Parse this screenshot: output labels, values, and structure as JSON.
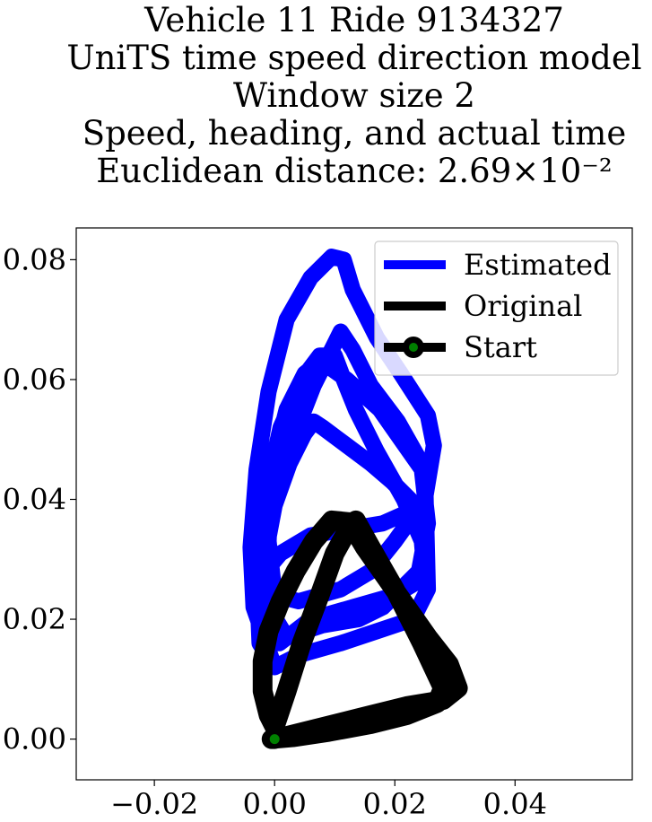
{
  "chart_data": {
    "type": "line",
    "title_lines": [
      "Vehicle 11 Ride 9134327",
      "UniTS time speed direction model",
      "Window size 2",
      "Speed, heading, and actual time",
      "Euclidean distance: 2.69×10⁻²"
    ],
    "xlim": [
      -0.033,
      0.0595
    ],
    "ylim": [
      -0.0068,
      0.0853
    ],
    "x_ticks": [
      -0.02,
      0.0,
      0.02,
      0.04
    ],
    "x_tick_labels": [
      "−0.02",
      "0.00",
      "0.02",
      "0.04"
    ],
    "y_ticks": [
      0.0,
      0.02,
      0.04,
      0.06,
      0.08
    ],
    "y_tick_labels": [
      "0.00",
      "0.02",
      "0.04",
      "0.06",
      "0.08"
    ],
    "grid": false,
    "legend_position": "top-right",
    "series": [
      {
        "name": "Estimated",
        "color": "#0000ff",
        "x": [
          0.0,
          -0.0035,
          -0.004,
          -0.003,
          -0.001,
          0.002,
          0.006,
          0.0095,
          0.0115,
          0.013,
          0.017,
          0.021,
          0.0255,
          0.0265,
          0.025,
          0.02,
          0.016,
          0.011,
          0.004,
          0.0,
          -0.001,
          -0.0005,
          0.002,
          0.005,
          0.0075,
          0.0085,
          0.012,
          0.0175,
          0.021,
          0.0245,
          0.0255,
          0.024,
          0.018,
          0.014,
          0.008,
          0.002,
          -0.001,
          -0.0015,
          0.0,
          0.0025,
          0.005,
          0.0065,
          0.008,
          0.012,
          0.016,
          0.0195,
          0.0225,
          0.0225,
          0.018,
          0.012,
          0.006,
          0.001,
          -0.0015,
          -0.003,
          -0.002,
          0.0,
          0.003,
          0.0065,
          0.0095,
          0.011,
          0.013,
          0.016,
          0.0205,
          0.025,
          0.0255,
          0.023,
          0.017,
          0.011,
          0.004,
          0.0,
          -0.0025,
          -0.003,
          -0.0015,
          0.001,
          0.0045,
          0.0075,
          0.01,
          0.0115,
          0.0135,
          0.017,
          0.0215,
          0.0245,
          0.025,
          0.02,
          0.013,
          0.006,
          0.0008
        ],
        "y": [
          0.012,
          0.022,
          0.032,
          0.045,
          0.058,
          0.07,
          0.077,
          0.0805,
          0.08,
          0.075,
          0.067,
          0.061,
          0.054,
          0.049,
          0.04,
          0.033,
          0.028,
          0.025,
          0.023,
          0.024,
          0.033,
          0.045,
          0.055,
          0.061,
          0.063,
          0.0625,
          0.06,
          0.055,
          0.05,
          0.045,
          0.036,
          0.028,
          0.022,
          0.02,
          0.019,
          0.017,
          0.022,
          0.031,
          0.039,
          0.046,
          0.051,
          0.053,
          0.052,
          0.049,
          0.046,
          0.043,
          0.04,
          0.038,
          0.036,
          0.035,
          0.034,
          0.031,
          0.028,
          0.024,
          0.032,
          0.04,
          0.05,
          0.059,
          0.065,
          0.068,
          0.065,
          0.059,
          0.053,
          0.045,
          0.025,
          0.02,
          0.018,
          0.016,
          0.014,
          0.012,
          0.016,
          0.028,
          0.041,
          0.052,
          0.06,
          0.064,
          0.064,
          0.06,
          0.055,
          0.048,
          0.04,
          0.033,
          0.027,
          0.024,
          0.022,
          0.02,
          0.016
        ]
      },
      {
        "name": "Original",
        "color": "#000000",
        "x": [
          0.0,
          0.006,
          0.014,
          0.022,
          0.028,
          0.0305,
          0.029,
          0.0255,
          0.022,
          0.0185,
          0.015,
          0.0125,
          0.0095,
          0.0065,
          0.0035,
          0.001,
          -0.001,
          -0.002,
          -0.002,
          -0.001,
          0.0,
          0.002,
          0.0045,
          0.0075,
          0.01,
          0.0125,
          0.0135,
          0.016,
          0.02,
          0.0245,
          0.028,
          0.027,
          0.022,
          0.016,
          0.009,
          0.003,
          -0.0005,
          0.0
        ],
        "y": [
          0.0,
          0.0015,
          0.0035,
          0.0055,
          0.0065,
          0.0085,
          0.0125,
          0.017,
          0.022,
          0.027,
          0.032,
          0.0362,
          0.0365,
          0.033,
          0.028,
          0.023,
          0.018,
          0.013,
          0.008,
          0.004,
          0.002,
          0.008,
          0.016,
          0.024,
          0.031,
          0.0355,
          0.0365,
          0.032,
          0.025,
          0.016,
          0.0085,
          0.006,
          0.004,
          0.0025,
          0.0012,
          0.0003,
          0.0,
          0.0
        ]
      }
    ],
    "start_marker": {
      "name": "Start",
      "x": 0.0,
      "y": 0.0,
      "color": "#008000",
      "edge_color": "#000000"
    }
  }
}
